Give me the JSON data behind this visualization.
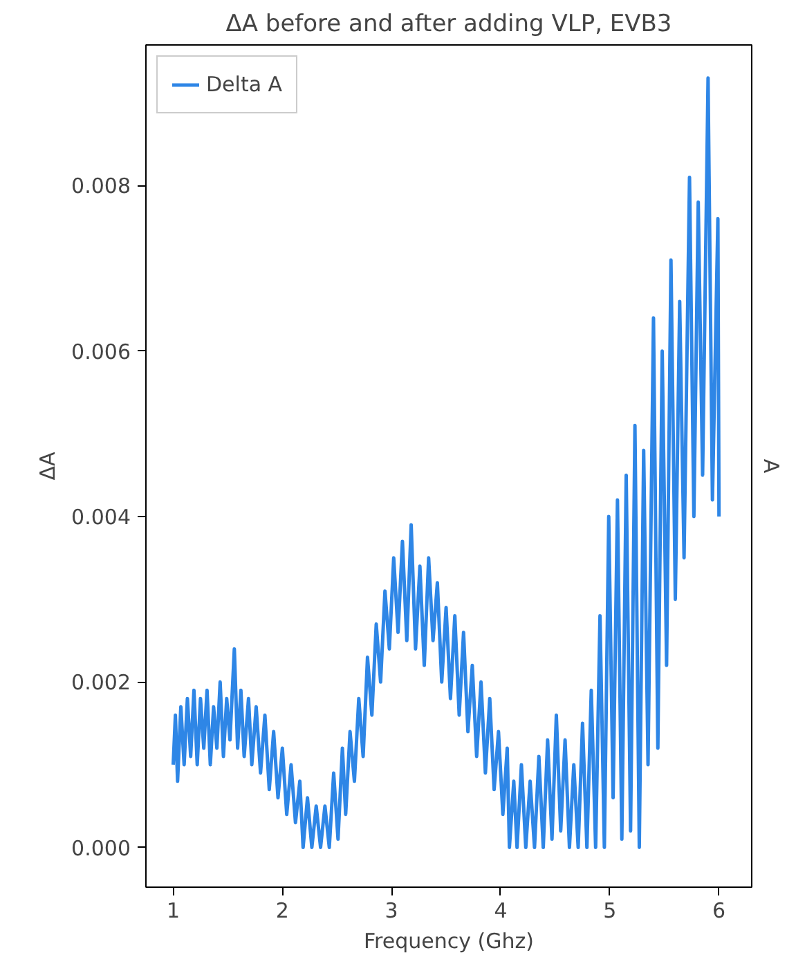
{
  "chart_data": {
    "type": "line",
    "title": "ΔA before and after adding VLP, EVB3",
    "xlabel": "Frequency (Ghz)",
    "ylabel": "ΔA",
    "y2label": "A",
    "xlim": [
      0.75,
      6.3
    ],
    "ylim": [
      -0.00048,
      0.0097
    ],
    "xticks": [
      1,
      2,
      3,
      4,
      5,
      6
    ],
    "yticks": [
      {
        "value": 0,
        "label": "0.000"
      },
      {
        "value": 0.002,
        "label": "0.002"
      },
      {
        "value": 0.004,
        "label": "0.004"
      },
      {
        "value": 0.006,
        "label": "0.006"
      },
      {
        "value": 0.008,
        "label": "0.008"
      }
    ],
    "grid": false,
    "legend": "top left",
    "line_style": "solid",
    "series": [
      {
        "name": "Delta A",
        "color": "#2e86e6",
        "x": [
          1.0,
          1.02,
          1.04,
          1.07,
          1.1,
          1.13,
          1.16,
          1.19,
          1.22,
          1.25,
          1.28,
          1.31,
          1.34,
          1.37,
          1.4,
          1.43,
          1.46,
          1.49,
          1.52,
          1.56,
          1.59,
          1.62,
          1.65,
          1.69,
          1.72,
          1.76,
          1.8,
          1.84,
          1.88,
          1.92,
          1.96,
          2.0,
          2.04,
          2.08,
          2.12,
          2.16,
          2.19,
          2.23,
          2.27,
          2.31,
          2.35,
          2.39,
          2.43,
          2.47,
          2.51,
          2.55,
          2.58,
          2.62,
          2.66,
          2.7,
          2.74,
          2.78,
          2.82,
          2.86,
          2.9,
          2.94,
          2.98,
          3.02,
          3.06,
          3.1,
          3.14,
          3.18,
          3.22,
          3.26,
          3.3,
          3.34,
          3.38,
          3.42,
          3.46,
          3.5,
          3.54,
          3.58,
          3.62,
          3.66,
          3.7,
          3.74,
          3.78,
          3.82,
          3.86,
          3.9,
          3.94,
          3.98,
          4.02,
          4.06,
          4.08,
          4.12,
          4.15,
          4.19,
          4.23,
          4.27,
          4.31,
          4.35,
          4.39,
          4.43,
          4.47,
          4.51,
          4.55,
          4.59,
          4.63,
          4.67,
          4.71,
          4.75,
          4.79,
          4.83,
          4.87,
          4.91,
          4.95,
          4.99,
          5.03,
          5.07,
          5.11,
          5.15,
          5.19,
          5.23,
          5.27,
          5.31,
          5.35,
          5.4,
          5.44,
          5.48,
          5.52,
          5.56,
          5.6,
          5.64,
          5.68,
          5.73,
          5.77,
          5.81,
          5.85,
          5.9,
          5.94,
          5.99,
          6.0
        ],
        "values": [
          0.001,
          0.0016,
          0.0008,
          0.0017,
          0.001,
          0.0018,
          0.0011,
          0.0019,
          0.001,
          0.0018,
          0.0012,
          0.0019,
          0.001,
          0.0017,
          0.0012,
          0.002,
          0.0011,
          0.0018,
          0.0013,
          0.0024,
          0.0012,
          0.0019,
          0.0011,
          0.0018,
          0.001,
          0.0017,
          0.0009,
          0.0016,
          0.0007,
          0.0014,
          0.0006,
          0.0012,
          0.0004,
          0.001,
          0.0003,
          0.0008,
          0.0,
          0.0006,
          0.0,
          0.0005,
          0.0,
          0.0005,
          0.0,
          0.0009,
          0.0001,
          0.0012,
          0.0004,
          0.0014,
          0.0008,
          0.0018,
          0.0011,
          0.0023,
          0.0016,
          0.0027,
          0.002,
          0.0031,
          0.0024,
          0.0035,
          0.0026,
          0.0037,
          0.0025,
          0.0039,
          0.0024,
          0.0034,
          0.0022,
          0.0035,
          0.0025,
          0.0032,
          0.002,
          0.0029,
          0.0018,
          0.0028,
          0.0016,
          0.0026,
          0.0014,
          0.0022,
          0.0011,
          0.002,
          0.0009,
          0.0018,
          0.0007,
          0.0014,
          0.0004,
          0.0012,
          0.0,
          0.0008,
          0.0,
          0.001,
          0.0,
          0.0008,
          0.0,
          0.0011,
          0.0,
          0.0013,
          0.0001,
          0.0016,
          0.0002,
          0.0013,
          0.0,
          0.001,
          0.0,
          0.0015,
          0.0,
          0.0019,
          0.0,
          0.0028,
          0.0,
          0.004,
          0.0006,
          0.0042,
          0.0001,
          0.0045,
          0.0002,
          0.0051,
          0.0,
          0.0048,
          0.001,
          0.0064,
          0.0012,
          0.006,
          0.0022,
          0.0071,
          0.003,
          0.0066,
          0.0035,
          0.0081,
          0.004,
          0.0078,
          0.0045,
          0.0093,
          0.0042,
          0.0076,
          0.004
        ]
      }
    ]
  }
}
